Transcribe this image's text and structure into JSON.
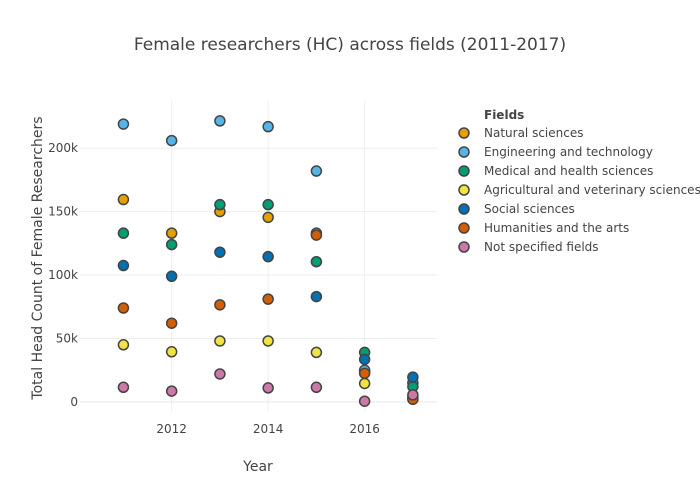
{
  "chart_data": {
    "type": "scatter",
    "title": "Female researchers (HC) across fields (2011-2017)",
    "xlabel": "Year",
    "ylabel": "Total Head Count of Female Researchers",
    "xlim": [
      2010.1,
      2017.5
    ],
    "ylim": [
      -8000,
      238000
    ],
    "x_ticks": [
      2012,
      2014,
      2016
    ],
    "x_tick_labels": [
      "2012",
      "2014",
      "2016"
    ],
    "y_ticks": [
      0,
      50000,
      100000,
      150000,
      200000
    ],
    "y_tick_labels": [
      "0",
      "50k",
      "100k",
      "150k",
      "200k"
    ],
    "grid": true,
    "legend_title": "Fields",
    "legend_position": "right",
    "series": [
      {
        "name": "Natural sciences",
        "color": "#E69F00",
        "x": [
          2011,
          2012,
          2013,
          2014,
          2015,
          2016,
          2017
        ],
        "y": [
          159500,
          133000,
          150000,
          145500,
          133000,
          24000,
          2500
        ]
      },
      {
        "name": "Engineering and technology",
        "color": "#56B4E9",
        "x": [
          2011,
          2012,
          2013,
          2014,
          2015,
          2016,
          2017
        ],
        "y": [
          219000,
          206000,
          221500,
          217000,
          182000,
          25000,
          15000
        ]
      },
      {
        "name": "Medical and health sciences",
        "color": "#009E73",
        "x": [
          2011,
          2012,
          2013,
          2014,
          2015,
          2016,
          2017
        ],
        "y": [
          133000,
          124000,
          155500,
          155500,
          110500,
          39000,
          12000
        ]
      },
      {
        "name": "Agricultural and veterinary sciences",
        "color": "#F0E442",
        "x": [
          2011,
          2012,
          2013,
          2014,
          2015,
          2016,
          2017
        ],
        "y": [
          45000,
          39500,
          48000,
          48000,
          39000,
          14500,
          4000
        ]
      },
      {
        "name": "Social sciences",
        "color": "#0072B2",
        "x": [
          2011,
          2012,
          2013,
          2014,
          2015,
          2016,
          2017
        ],
        "y": [
          107500,
          99000,
          118000,
          114500,
          83000,
          33500,
          19500
        ]
      },
      {
        "name": "Humanities and the arts",
        "color": "#D55E00",
        "x": [
          2011,
          2012,
          2013,
          2014,
          2015,
          2016,
          2017
        ],
        "y": [
          74000,
          62000,
          76500,
          81000,
          131500,
          22500,
          2000
        ]
      },
      {
        "name": "Not specified fields",
        "color": "#CC79A7",
        "x": [
          2011,
          2012,
          2013,
          2014,
          2015,
          2016,
          2017
        ],
        "y": [
          11500,
          8500,
          22000,
          11000,
          11500,
          500,
          5500
        ]
      }
    ]
  }
}
